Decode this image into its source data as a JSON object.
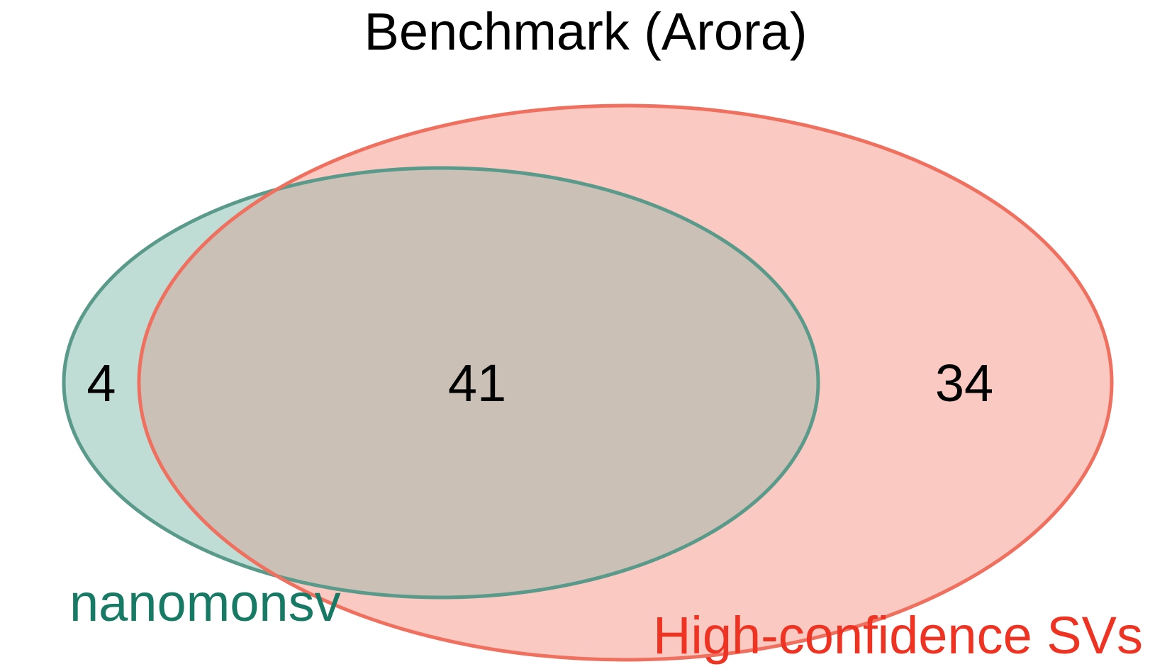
{
  "title": "Benchmark (Arora)",
  "sets": {
    "nanomonsv": {
      "label": "nanomonsv",
      "stroke_color": "#5A9A8A",
      "fill_color": "#BFDDD5",
      "label_color": "#177A65"
    },
    "high_confidence": {
      "label": "High-confidence SVs",
      "stroke_color": "#F07060",
      "fill_color": "#FAC9C1",
      "label_color": "#EE3322"
    }
  },
  "regions": {
    "nanomonsv_only": "4",
    "intersection": "41",
    "high_confidence_only": "34"
  },
  "intersection_fill_color": "#CBC0B6"
}
